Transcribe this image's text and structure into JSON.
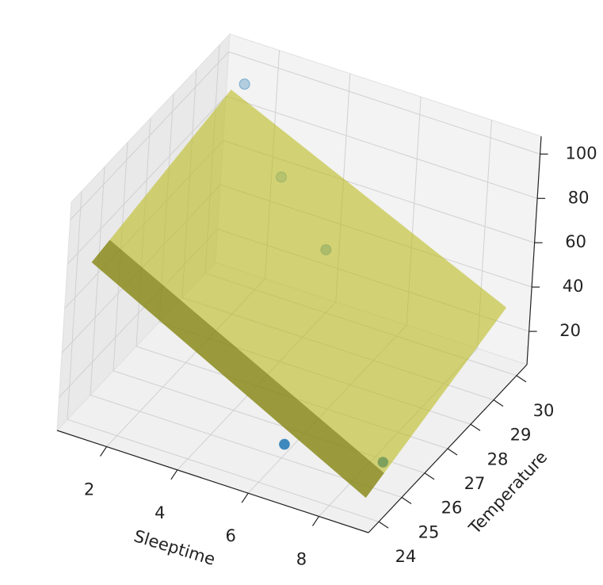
{
  "chart_data": {
    "type": "scatter3d",
    "xlabel": "Sleeptime",
    "ylabel": "Temperature",
    "x": [
      1.6,
      2.6,
      4.2,
      6,
      8.7
    ],
    "y": [
      29.6,
      29.9,
      29.5,
      25.1,
      25.2
    ],
    "z": [
      100,
      60,
      40,
      10,
      15
    ],
    "color": "#1f77b4",
    "plane": {
      "x": [
        1,
        9
      ],
      "y": [
        24,
        30
      ],
      "z": [
        [
          78,
          90
        ],
        [
          13.7,
          33.6
        ]
      ],
      "color": "#bcbd22"
    },
    "xlim": [
      0.6,
      9.4
    ],
    "ylim": [
      23.55,
      30.45
    ],
    "zlim": [
      5,
      108
    ],
    "xticks": [
      2,
      4,
      6,
      8
    ],
    "yticks": [
      24,
      25,
      26,
      27,
      28,
      29,
      30
    ],
    "zticks": [
      20,
      40,
      60,
      80,
      100
    ],
    "grid": true
  }
}
